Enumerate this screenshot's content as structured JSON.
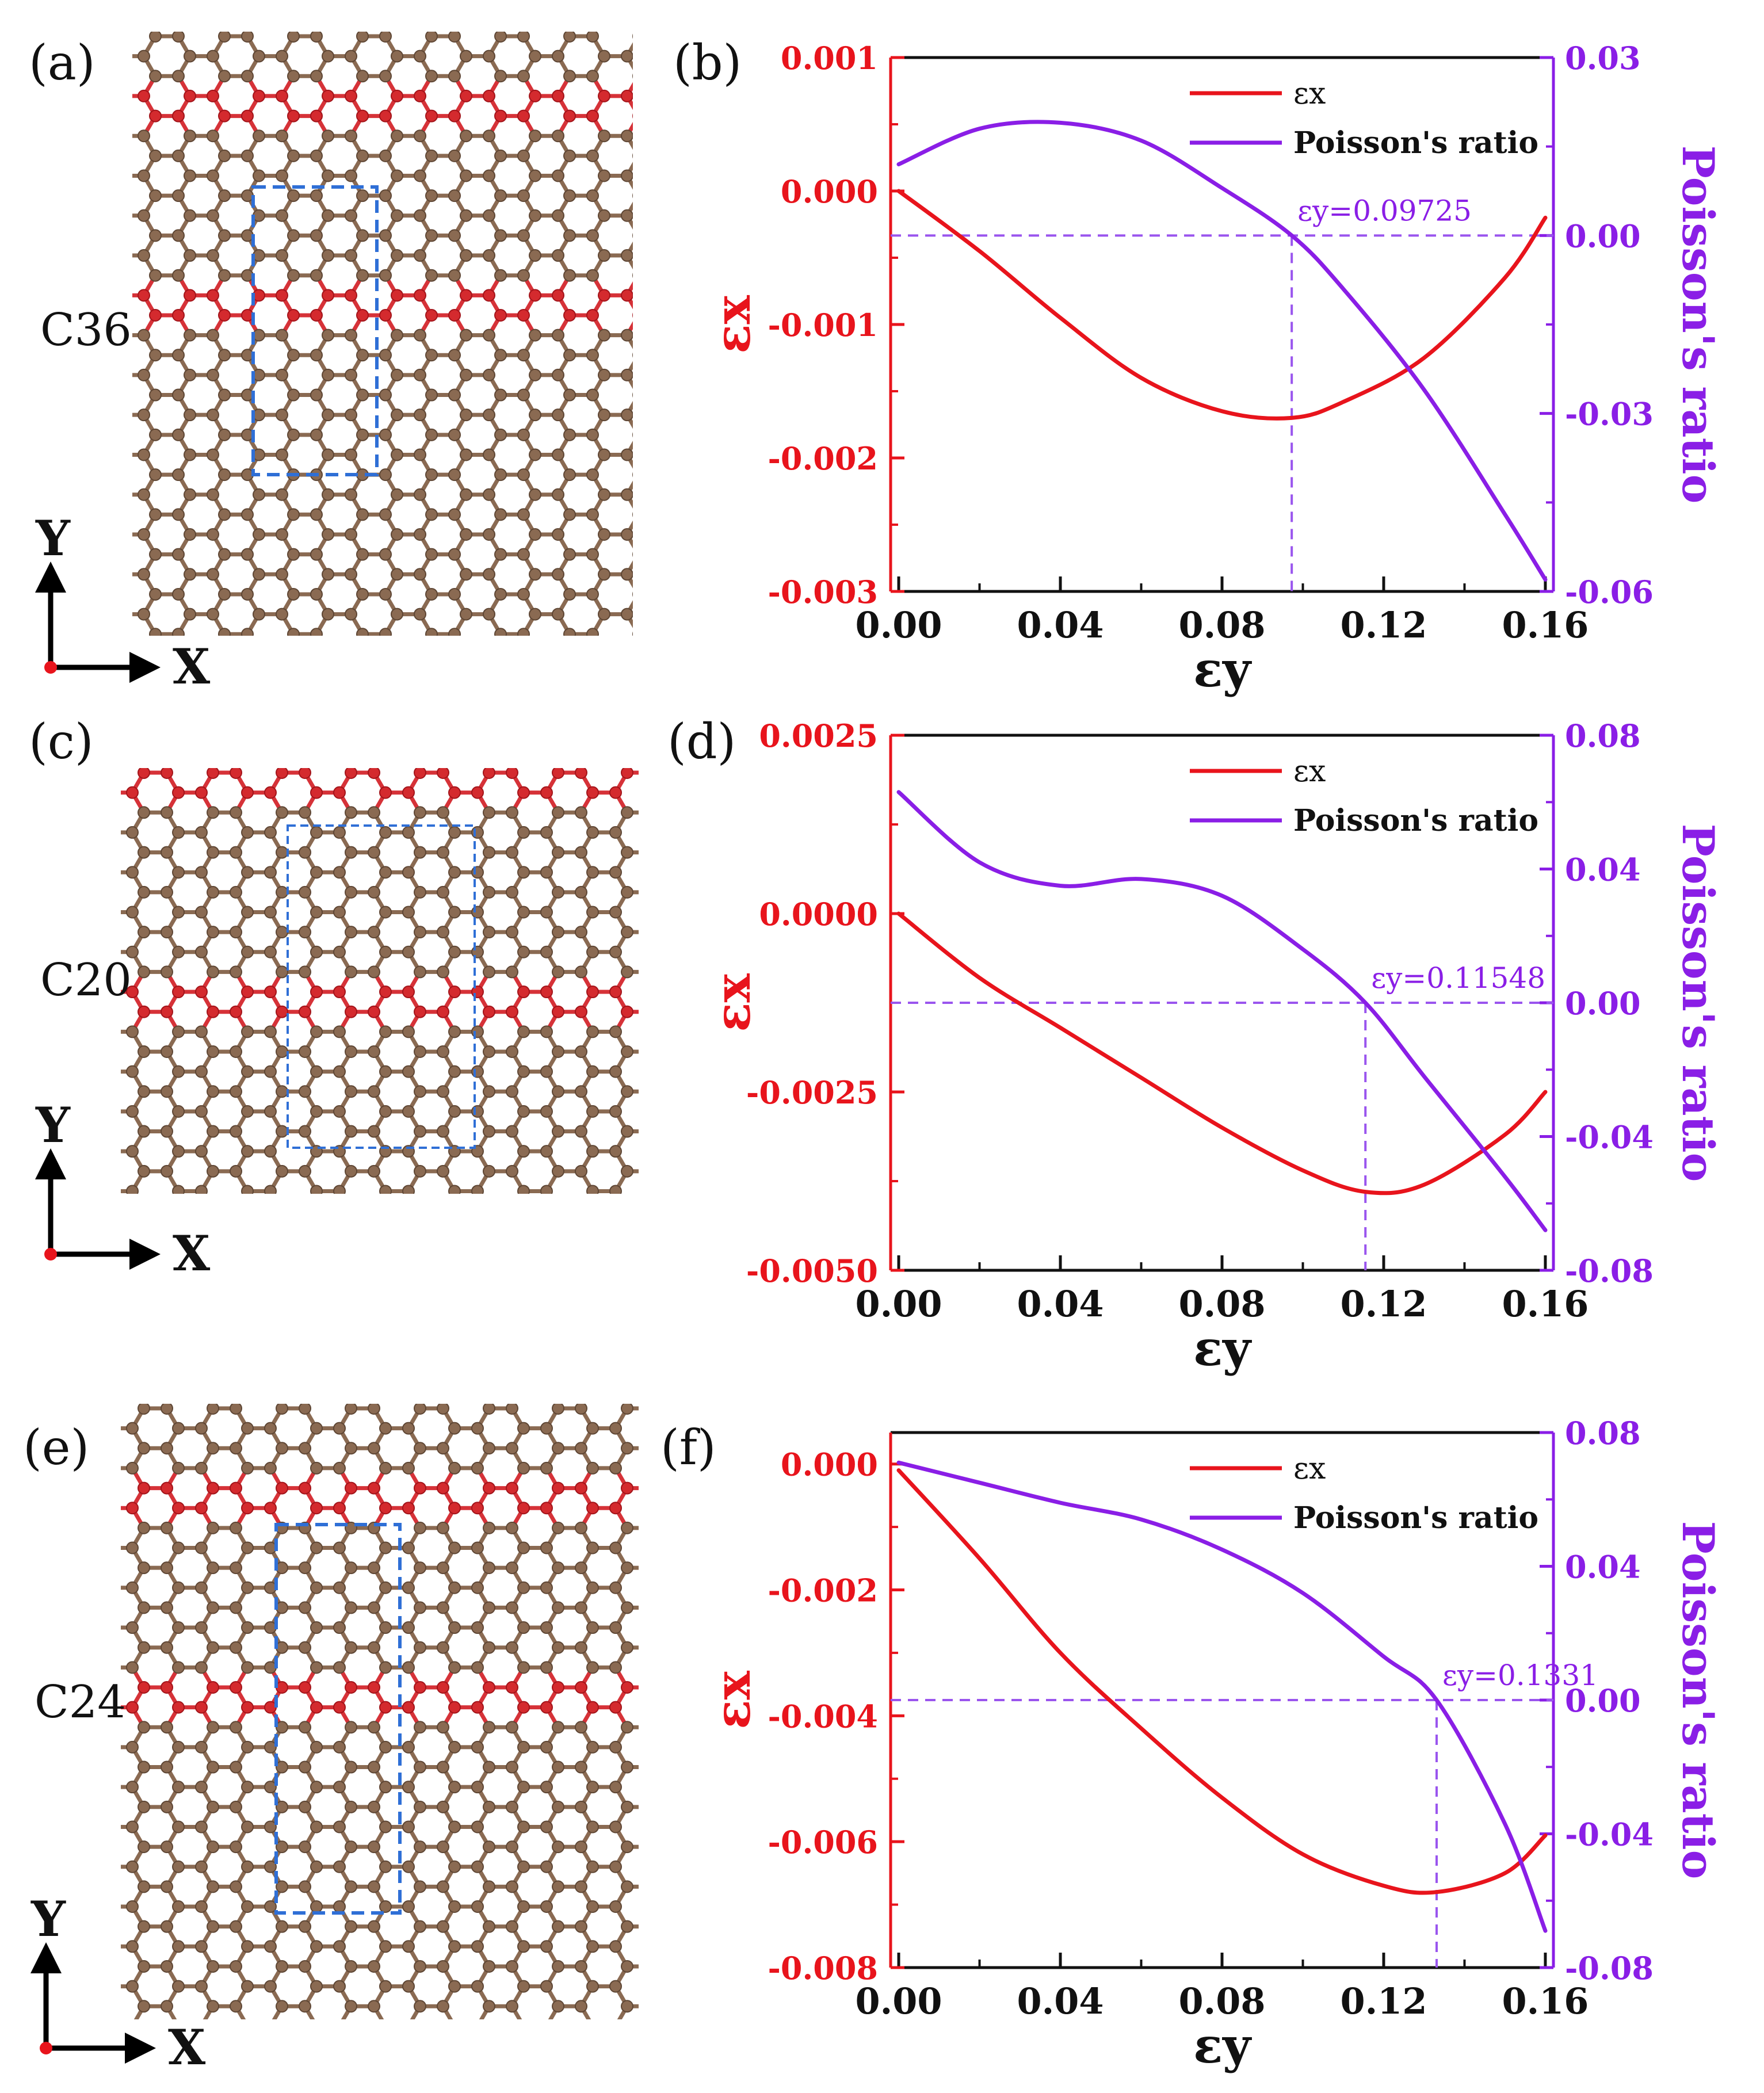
{
  "colors": {
    "carbon_brown": "#8a6a52",
    "carbon_red": "#d42a2e",
    "bond_brown": "#8a6a52",
    "bond_red": "#d63238",
    "cell_box": "#2f6fd6",
    "ex_line": "#e8141c",
    "poisson_line": "#8a1ee6",
    "left_axis": "#e8141c",
    "right_axis": "#8a1ee6",
    "guide_line": "#9a55ee"
  },
  "panels": [
    {
      "label": "(a)",
      "material": "C36",
      "axis_x": "X",
      "axis_y": "Y",
      "red_row_pairs": [
        [
          3,
          4
        ],
        [
          13,
          14
        ]
      ]
    },
    {
      "label": "(c)",
      "material": "C20",
      "axis_x": "X",
      "axis_y": "Y",
      "red_row_pairs": [
        [
          0,
          1
        ],
        [
          11,
          12
        ]
      ]
    },
    {
      "label": "(e)",
      "material": "C24",
      "axis_x": "X",
      "axis_y": "Y",
      "red_row_pairs": [
        [
          4,
          5
        ],
        [
          14,
          15
        ]
      ]
    }
  ],
  "chart_data": [
    {
      "label": "(b)",
      "type": "line",
      "xlabel": "εy",
      "ylabel_left": "εx",
      "ylabel_right": "Poisson's ratio",
      "xlim": [
        -0.002,
        0.162
      ],
      "xticks": [
        0.0,
        0.04,
        0.08,
        0.12,
        0.16
      ],
      "xtick_labels": [
        "0.00",
        "0.04",
        "0.08",
        "0.12",
        "0.16"
      ],
      "ylim_left": [
        -0.003,
        0.001
      ],
      "yticks_left": [
        0.001,
        0.0,
        -0.001,
        -0.002,
        -0.003
      ],
      "ytick_labels_left": [
        "0.001",
        "0.000",
        "-0.001",
        "-0.002",
        "-0.003"
      ],
      "ylim_right": [
        -0.06,
        0.03
      ],
      "yticks_right": [
        0.03,
        0.0,
        -0.03,
        -0.06
      ],
      "ytick_labels_right": [
        "0.03",
        "0.00",
        "-0.03",
        "-0.06"
      ],
      "legend": [
        "εx",
        "Poisson's ratio"
      ],
      "legend_position": "top-right",
      "annotation": "εy=0.09725",
      "annotation_x": 0.09725,
      "series": [
        {
          "name": "εx",
          "axis": "left",
          "x": [
            0.0,
            0.02,
            0.04,
            0.06,
            0.08,
            0.09725,
            0.11,
            0.13,
            0.15,
            0.16
          ],
          "values": [
            0.0,
            -0.00045,
            -0.00095,
            -0.0014,
            -0.00165,
            -0.0017,
            -0.00158,
            -0.00125,
            -0.00065,
            -0.0002
          ]
        },
        {
          "name": "Poisson's ratio",
          "axis": "right",
          "x": [
            0.0,
            0.02,
            0.04,
            0.06,
            0.08,
            0.09725,
            0.11,
            0.13,
            0.15,
            0.16
          ],
          "values": [
            0.012,
            0.018,
            0.019,
            0.016,
            0.008,
            0.0,
            -0.009,
            -0.026,
            -0.047,
            -0.058
          ]
        }
      ]
    },
    {
      "label": "(d)",
      "type": "line",
      "xlabel": "εy",
      "ylabel_left": "εx",
      "ylabel_right": "Poisson's ratio",
      "xlim": [
        -0.002,
        0.162
      ],
      "xticks": [
        0.0,
        0.04,
        0.08,
        0.12,
        0.16
      ],
      "xtick_labels": [
        "0.00",
        "0.04",
        "0.08",
        "0.12",
        "0.16"
      ],
      "ylim_left": [
        -0.005,
        0.0025
      ],
      "yticks_left": [
        0.0025,
        0.0,
        -0.0025,
        -0.005
      ],
      "ytick_labels_left": [
        "0.0025",
        "0.0000",
        "-0.0025",
        "-0.0050"
      ],
      "ylim_right": [
        -0.08,
        0.08
      ],
      "yticks_right": [
        0.08,
        0.04,
        0.0,
        -0.04,
        -0.08
      ],
      "ytick_labels_right": [
        "0.08",
        "0.04",
        "0.00",
        "-0.04",
        "-0.08"
      ],
      "legend": [
        "εx",
        "Poisson's ratio"
      ],
      "legend_position": "top-right",
      "annotation": "εy=0.11548",
      "annotation_x": 0.11548,
      "series": [
        {
          "name": "εx",
          "axis": "left",
          "x": [
            0.0,
            0.02,
            0.04,
            0.06,
            0.08,
            0.1,
            0.11548,
            0.13,
            0.15,
            0.16
          ],
          "values": [
            0.0,
            -0.0009,
            -0.0016,
            -0.0023,
            -0.003,
            -0.0036,
            -0.0039,
            -0.0038,
            -0.0031,
            -0.0025
          ]
        },
        {
          "name": "Poisson's ratio",
          "axis": "right",
          "x": [
            0.0,
            0.02,
            0.04,
            0.06,
            0.08,
            0.1,
            0.11548,
            0.13,
            0.15,
            0.16
          ],
          "values": [
            0.063,
            0.042,
            0.035,
            0.037,
            0.032,
            0.016,
            0.0,
            -0.022,
            -0.052,
            -0.068
          ]
        }
      ]
    },
    {
      "label": "(f)",
      "type": "line",
      "xlabel": "εy",
      "ylabel_left": "εx",
      "ylabel_right": "Poisson's ratio",
      "xlim": [
        -0.002,
        0.162
      ],
      "xticks": [
        0.0,
        0.04,
        0.08,
        0.12,
        0.16
      ],
      "xtick_labels": [
        "0.00",
        "0.04",
        "0.08",
        "0.12",
        "0.16"
      ],
      "ylim_left": [
        -0.008,
        0.0005
      ],
      "yticks_left": [
        0.0,
        -0.002,
        -0.004,
        -0.006,
        -0.008
      ],
      "ytick_labels_left": [
        "0.000",
        "-0.002",
        "-0.004",
        "-0.006",
        "-0.008"
      ],
      "ylim_right": [
        -0.08,
        0.08
      ],
      "yticks_right": [
        0.08,
        0.04,
        0.0,
        -0.04,
        -0.08
      ],
      "ytick_labels_right": [
        "0.08",
        "0.04",
        "0.00",
        "-0.04",
        "-0.08"
      ],
      "legend": [
        "εx",
        "Poisson's ratio"
      ],
      "legend_position": "top-right",
      "annotation": "εy=0.1331",
      "annotation_x": 0.1331,
      "series": [
        {
          "name": "εx",
          "axis": "left",
          "x": [
            0.0,
            0.02,
            0.04,
            0.06,
            0.08,
            0.1,
            0.12,
            0.1331,
            0.15,
            0.16
          ],
          "values": [
            -0.0001,
            -0.0015,
            -0.003,
            -0.0042,
            -0.0053,
            -0.0062,
            -0.0067,
            -0.0068,
            -0.0065,
            -0.0059
          ]
        },
        {
          "name": "Poisson's ratio",
          "axis": "right",
          "x": [
            0.0,
            0.02,
            0.04,
            0.06,
            0.08,
            0.1,
            0.12,
            0.1331,
            0.15,
            0.16
          ],
          "values": [
            0.071,
            0.065,
            0.059,
            0.054,
            0.045,
            0.032,
            0.013,
            0.0,
            -0.037,
            -0.069
          ]
        }
      ]
    }
  ]
}
